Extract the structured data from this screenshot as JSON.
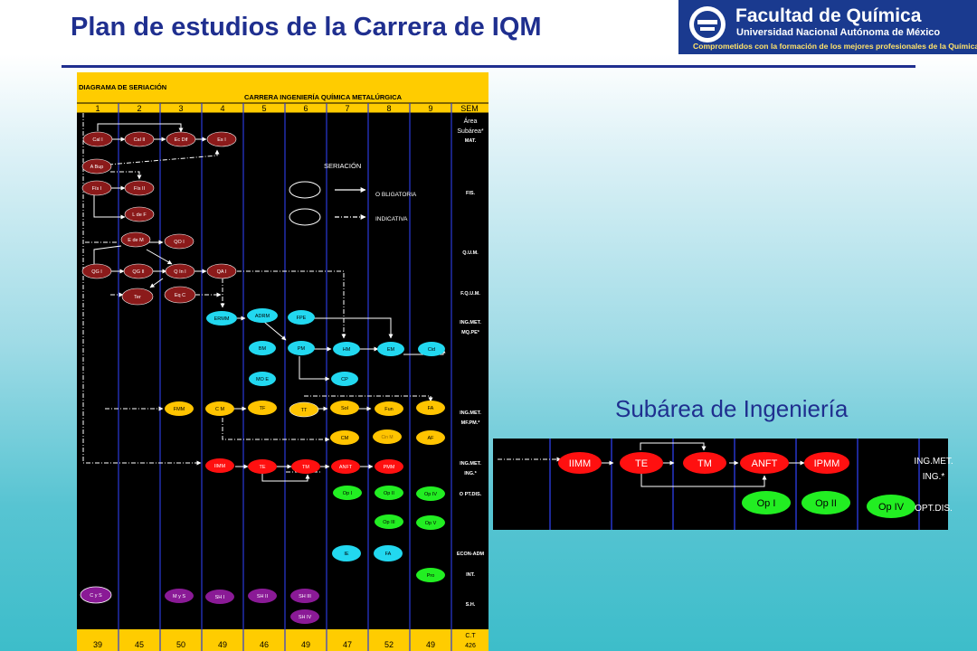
{
  "header": {
    "title": "Plan de estudios de la Carrera de IQM",
    "logo": {
      "name": "Facultad de Química",
      "university": "Universidad Nacional Autónoma de México",
      "motto": "Comprometidos con la formación de los mejores profesionales de la Química",
      "icon": "faculty-emblem-icon"
    }
  },
  "diagram": {
    "header_left": "DIAGRAMA DE SERIACIÓN",
    "header_center": "CARRERA INGENIERÍA QUÍMICA METALÚRGICA",
    "columns": [
      "1",
      "2",
      "3",
      "4",
      "5",
      "6",
      "7",
      "8",
      "9"
    ],
    "sem_label": "SEM",
    "area_label": "Área",
    "subarea_label": "Subárea*",
    "rows": [
      {
        "key": "mat",
        "label": "MAT."
      },
      {
        "key": "fis",
        "label": "FIS."
      },
      {
        "key": "qum",
        "label": "Q.U.M."
      },
      {
        "key": "fqum",
        "label": "F.Q.U.M."
      },
      {
        "key": "ingmq1",
        "label": "ING.MET."
      },
      {
        "key": "ingmq2",
        "label": "MQ.PE*"
      },
      {
        "key": "ingmf1",
        "label": "ING.MET."
      },
      {
        "key": "ingmf2",
        "label": "MF.PM.*"
      },
      {
        "key": "ingi1",
        "label": "ING.MET."
      },
      {
        "key": "ingi2",
        "label": "ING.*"
      },
      {
        "key": "optdis",
        "label": "O PT.DIS."
      },
      {
        "key": "econ",
        "label": "ECON-ADM"
      },
      {
        "key": "int",
        "label": "INT."
      },
      {
        "key": "sh",
        "label": "S.H."
      }
    ],
    "legend": {
      "title": "SERIACIÓN",
      "mandatory": "O BLIGATORIA",
      "indicative": "INDICATIVA"
    },
    "credits": [
      "39",
      "45",
      "50",
      "49",
      "46",
      "49",
      "47",
      "52",
      "49"
    ],
    "ct_label": "C.T",
    "ct_value": "426",
    "colors": {
      "header": "#ffcc00",
      "background": "#000000",
      "lines": "#2a3ad8",
      "maroon": "#8b1a1a",
      "cyan": "#22d8f0",
      "yellow": "#ffc400",
      "red": "#ff1010",
      "green": "#22ee22",
      "purple": "#8a1a96"
    },
    "nodes": {
      "calI": "Cal I",
      "calII": "Cal II",
      "ecDif": "Ec Dif",
      "esI": "Es I",
      "aBup": "A Bup",
      "fisI": "Fís I",
      "fisII": "Fís II",
      "ldeF": "L de F",
      "edeM": "E de M",
      "qoI": "QO I",
      "qgI": "QG I",
      "qgII": "QG II",
      "qinI": "Q In I",
      "qaI": "QA I",
      "ter": "Ter",
      "eqC": "Eq C",
      "ermm": "ERMM",
      "adrm": "ADRM",
      "fpe": "FPE",
      "bm": "BM",
      "pm": "PM",
      "hm": "HM",
      "em": "EM",
      "cid": "Cid",
      "moe": "MO E",
      "cp": "CP",
      "fmm": "FMM",
      "cm": "C M",
      "tf": "TF",
      "tt": "TT",
      "sol": "Sol",
      "fun": "Fun",
      "fa": "FA",
      "cm2": "CM",
      "cinm": "Cin M",
      "af": "AF",
      "iimm": "IIMM",
      "te": "TE",
      "tm": "TM",
      "anft": "ANFT",
      "pmm": "PMM",
      "opI": "Op I",
      "opII": "Op II",
      "opIV": "Op IV",
      "opIII": "Op III",
      "opV": "Op V",
      "ie": "IE",
      "fa2": "FA",
      "pro": "Pro",
      "cys": "C y S",
      "mys": "M y S",
      "shI": "SH I",
      "shII": "SH II",
      "shIII": "SH III",
      "shIV": "SH IV"
    }
  },
  "subarea": {
    "title": "Subárea de Ingeniería",
    "nodes": {
      "iimm": "IIMM",
      "te": "TE",
      "tm": "TM",
      "anft": "ANFT",
      "ipmm": "IPMM",
      "opI": "Op I",
      "opII": "Op II",
      "opIV": "Op IV"
    },
    "labels": [
      "ING.MET.",
      "ING.*",
      "OPT.DIS."
    ]
  }
}
